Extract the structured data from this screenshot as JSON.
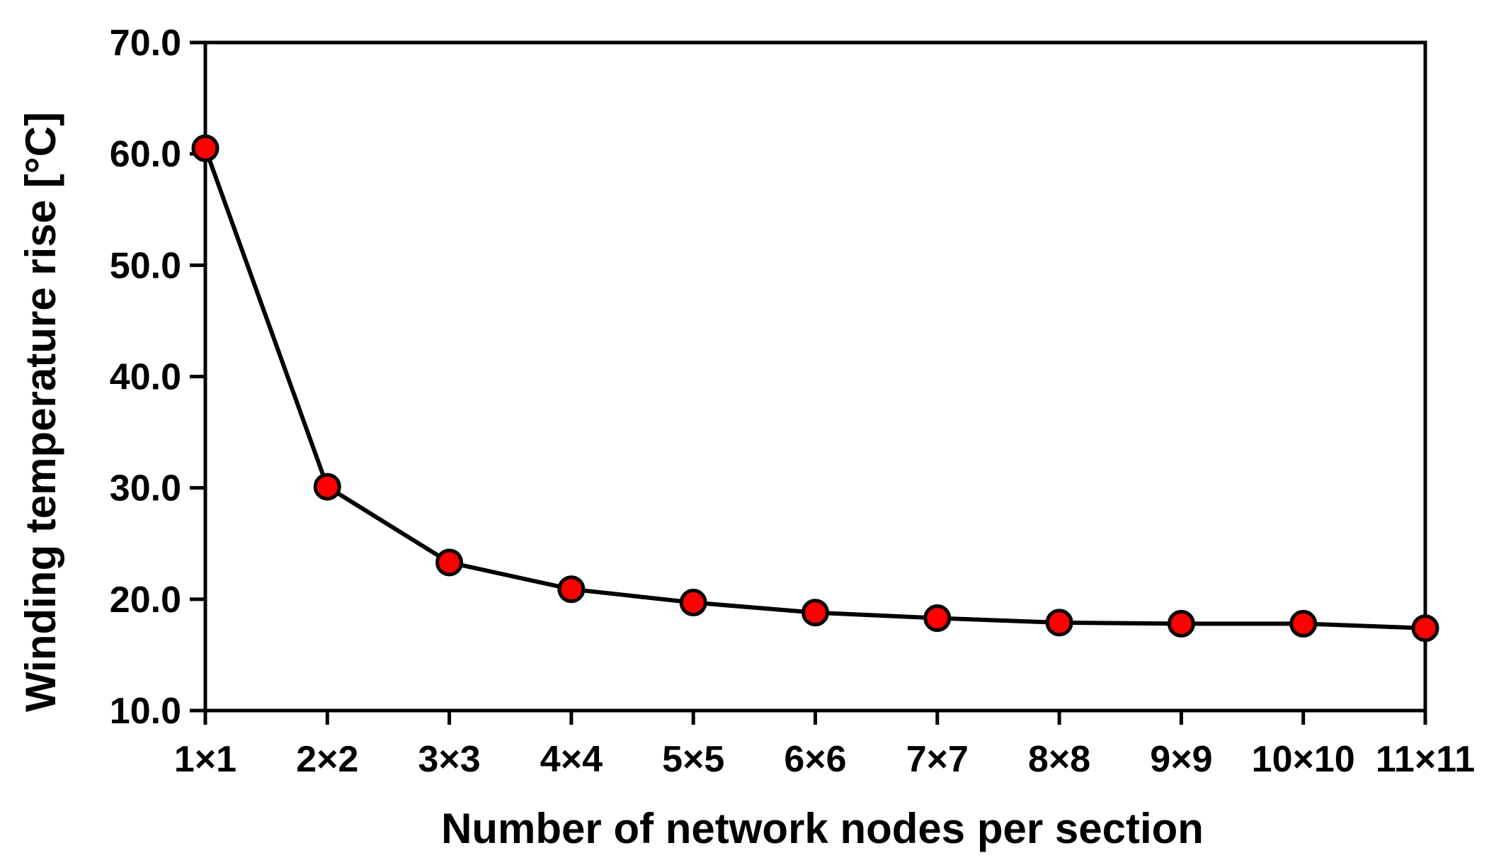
{
  "chart_data": {
    "type": "line",
    "xlabel": "Number of network nodes per section",
    "ylabel": "Winding temperature rise [°C]",
    "categories": [
      "1×1",
      "2×2",
      "3×3",
      "4×4",
      "5×5",
      "6×6",
      "7×7",
      "8×8",
      "9×9",
      "10×10",
      "11×11"
    ],
    "series": [
      {
        "values": [
          60.5,
          30.1,
          23.3,
          20.9,
          19.7,
          18.8,
          18.3,
          17.9,
          17.8,
          17.8,
          17.4
        ]
      }
    ],
    "ylim": [
      10.0,
      70.0
    ],
    "yticks": [
      "10.0",
      "20.0",
      "30.0",
      "40.0",
      "50.0",
      "60.0",
      "70.0"
    ],
    "grid": false,
    "colors": {
      "line": "#000000",
      "marker_fill": "#ff0000",
      "marker_stroke": "#000000",
      "axes": "#000000"
    }
  }
}
